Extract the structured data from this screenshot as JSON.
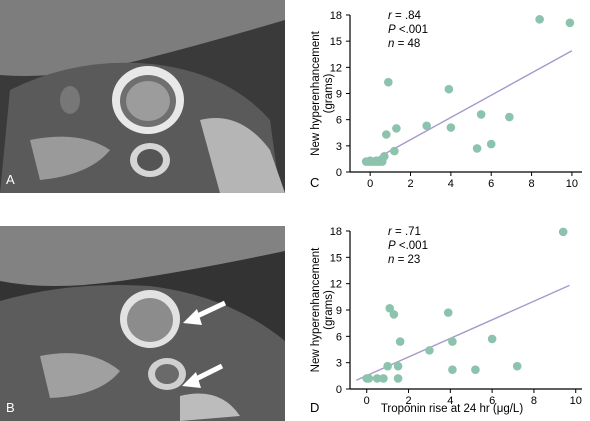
{
  "panels": {
    "a": {
      "letter": "A"
    },
    "b": {
      "letter": "B"
    },
    "c": {
      "letter": "C"
    },
    "d": {
      "letter": "D"
    }
  },
  "colors": {
    "point": "#8cc3ad",
    "fit_line": "#a59acb",
    "axis": "#000000",
    "mri_background": "#3d3d3d"
  },
  "chart_data": [
    {
      "type": "scatter",
      "panel": "C",
      "ylabel": "New hyperenhancement (grams)",
      "xlabel": "",
      "xlim": [
        -1,
        10.5
      ],
      "ylim": [
        0,
        18
      ],
      "xticks": [
        "0",
        "2",
        "4",
        "6",
        "8",
        "10"
      ],
      "xtick_values": [
        0,
        2,
        4,
        6,
        8,
        10
      ],
      "yticks": [
        "0",
        "3",
        "6",
        "9",
        "12",
        "15",
        "18"
      ],
      "ytick_values": [
        0,
        3,
        6,
        9,
        12,
        15,
        18
      ],
      "annotation": [
        "r = .84",
        "P <.001",
        "n = 48"
      ],
      "grid": false,
      "points": [
        {
          "x": -0.2,
          "y": 1.2
        },
        {
          "x": -0.1,
          "y": 1.2
        },
        {
          "x": 0.0,
          "y": 1.2
        },
        {
          "x": 0.1,
          "y": 1.2
        },
        {
          "x": 0.2,
          "y": 1.2
        },
        {
          "x": 0.3,
          "y": 1.2
        },
        {
          "x": 0.4,
          "y": 1.2
        },
        {
          "x": 0.5,
          "y": 1.2
        },
        {
          "x": 0.6,
          "y": 1.2
        },
        {
          "x": 0.0,
          "y": 1.3
        },
        {
          "x": 0.3,
          "y": 1.3
        },
        {
          "x": 0.7,
          "y": 1.8
        },
        {
          "x": 0.8,
          "y": 4.3
        },
        {
          "x": 0.9,
          "y": 10.3
        },
        {
          "x": 1.2,
          "y": 2.4
        },
        {
          "x": 1.3,
          "y": 5.0
        },
        {
          "x": 2.8,
          "y": 5.3
        },
        {
          "x": 3.9,
          "y": 9.5
        },
        {
          "x": 4.0,
          "y": 5.1
        },
        {
          "x": 5.3,
          "y": 2.7
        },
        {
          "x": 5.5,
          "y": 6.6
        },
        {
          "x": 6.0,
          "y": 3.2
        },
        {
          "x": 6.9,
          "y": 6.3
        },
        {
          "x": 8.4,
          "y": 17.5
        },
        {
          "x": 9.9,
          "y": 17.1
        }
      ],
      "fit_line": {
        "x": [
          -0.2,
          10.0
        ],
        "y": [
          0.9,
          13.9
        ]
      }
    },
    {
      "type": "scatter",
      "panel": "D",
      "ylabel": "New hyperenhancement (grams)",
      "xlabel": "Troponin rise at 24 hr (μg/L)",
      "xlim": [
        -0.8,
        10.3
      ],
      "ylim": [
        0,
        18
      ],
      "xticks": [
        "0",
        "2",
        "4",
        "6",
        "8",
        "10"
      ],
      "xtick_values": [
        0,
        2,
        4,
        6,
        8,
        10
      ],
      "yticks": [
        "0",
        "3",
        "6",
        "9",
        "12",
        "15",
        "18"
      ],
      "ytick_values": [
        0,
        3,
        6,
        9,
        12,
        15,
        18
      ],
      "annotation": [
        "r = .71",
        "P <.001",
        "n = 23"
      ],
      "grid": false,
      "points": [
        {
          "x": 0.0,
          "y": 1.2
        },
        {
          "x": 0.1,
          "y": 1.2
        },
        {
          "x": 0.5,
          "y": 1.2
        },
        {
          "x": 0.8,
          "y": 1.2
        },
        {
          "x": 1.0,
          "y": 2.6
        },
        {
          "x": 1.1,
          "y": 9.2
        },
        {
          "x": 1.3,
          "y": 8.5
        },
        {
          "x": 1.5,
          "y": 1.2
        },
        {
          "x": 1.5,
          "y": 2.6
        },
        {
          "x": 1.6,
          "y": 5.4
        },
        {
          "x": 3.0,
          "y": 4.4
        },
        {
          "x": 3.9,
          "y": 8.7
        },
        {
          "x": 4.1,
          "y": 5.4
        },
        {
          "x": 4.1,
          "y": 2.2
        },
        {
          "x": 5.2,
          "y": 2.2
        },
        {
          "x": 6.0,
          "y": 5.7
        },
        {
          "x": 7.2,
          "y": 2.6
        },
        {
          "x": 9.4,
          "y": 17.9
        }
      ],
      "fit_line": {
        "x": [
          -0.5,
          9.7
        ],
        "y": [
          1.0,
          11.8
        ]
      }
    }
  ]
}
